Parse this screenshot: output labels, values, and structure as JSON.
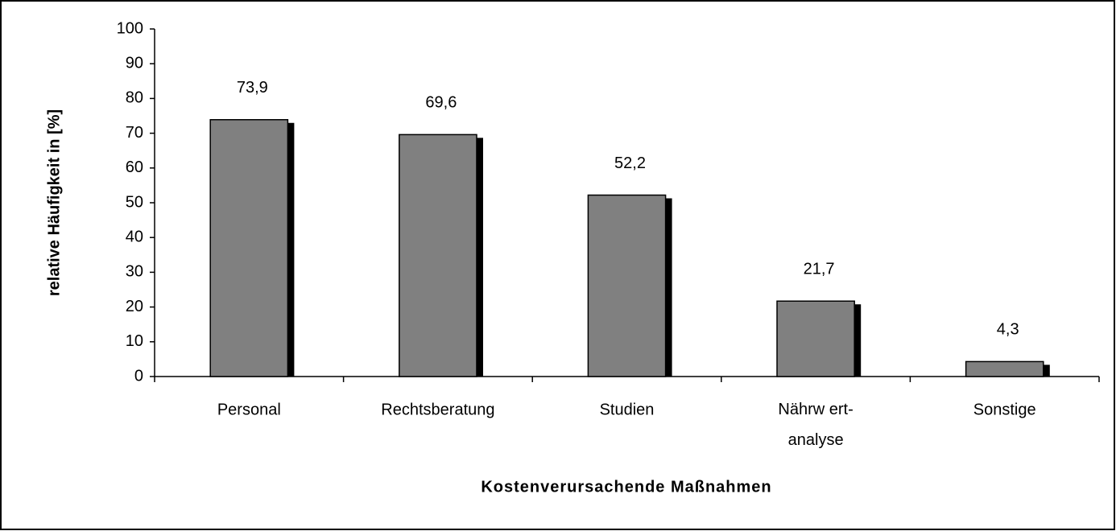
{
  "chart_data": {
    "type": "bar",
    "x_label": "Kostenverursachende Maßnahmen",
    "y_label": "relative Häufigkeit in [%]",
    "categories": [
      "Personal",
      "Rechtsberatung",
      "Studien",
      "Nährw ert-\nanalyse",
      "Sonstige"
    ],
    "values": [
      73.9,
      69.6,
      52.2,
      21.7,
      4.3
    ],
    "value_labels": [
      "73,9",
      "69,6",
      "52,2",
      "21,7",
      "4,3"
    ],
    "color": "#808080",
    "ylim": [
      0,
      100
    ],
    "yticks": [
      0,
      10,
      20,
      30,
      40,
      50,
      60,
      70,
      80,
      90,
      100
    ],
    "grid": false
  }
}
